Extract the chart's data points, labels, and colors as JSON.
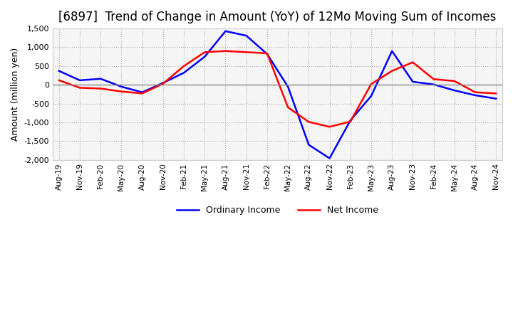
{
  "title": "[6897]  Trend of Change in Amount (YoY) of 12Mo Moving Sum of Incomes",
  "ylabel": "Amount (million yen)",
  "ylim": [
    -2000,
    1500
  ],
  "yticks": [
    -2000,
    -1500,
    -1000,
    -500,
    0,
    500,
    1000,
    1500
  ],
  "x_labels": [
    "Aug-19",
    "Nov-19",
    "Feb-20",
    "May-20",
    "Aug-20",
    "Nov-20",
    "Feb-21",
    "May-21",
    "Aug-21",
    "Nov-21",
    "Feb-22",
    "May-22",
    "Aug-22",
    "Nov-22",
    "Feb-23",
    "May-23",
    "Aug-23",
    "Nov-23",
    "Feb-24",
    "May-24",
    "Aug-24",
    "Nov-24"
  ],
  "ordinary_income": [
    370,
    120,
    160,
    -50,
    -200,
    50,
    320,
    750,
    1430,
    1310,
    820,
    -50,
    -1600,
    -1960,
    -950,
    -300,
    900,
    80,
    10,
    -150,
    -280,
    -370
  ],
  "net_income": [
    120,
    -80,
    -100,
    -180,
    -230,
    30,
    500,
    870,
    900,
    870,
    840,
    -600,
    -990,
    -1120,
    -980,
    20,
    370,
    600,
    150,
    100,
    -200,
    -230
  ],
  "ordinary_color": "#0000ff",
  "net_color": "#ff0000",
  "grid_color": "#aaaaaa",
  "background_color": "#ffffff",
  "plot_bg_color": "#f5f5f5",
  "title_fontsize": 12,
  "legend_labels": [
    "Ordinary Income",
    "Net Income"
  ],
  "zero_line_color": "#888888"
}
